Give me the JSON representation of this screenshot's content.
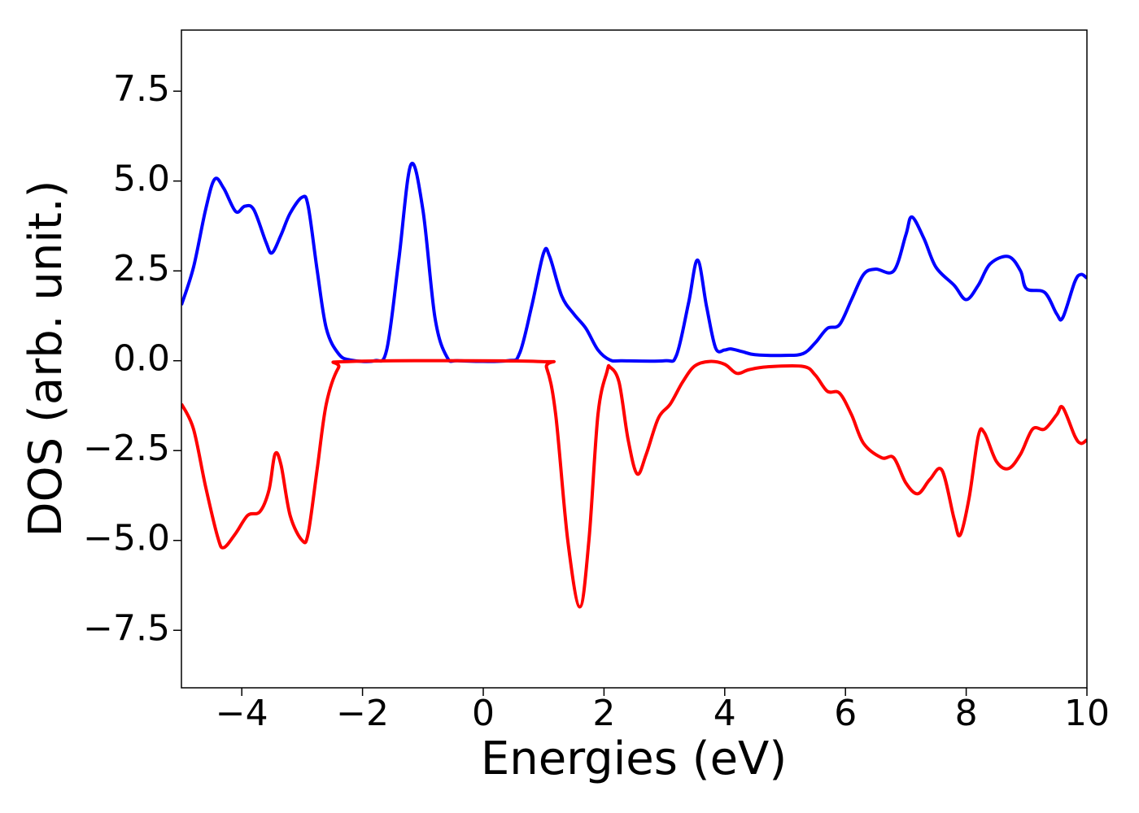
{
  "chart_data": {
    "type": "line",
    "xlabel": "Energies (eV)",
    "ylabel": "DOS (arb. unit.)",
    "xlim": [
      -5,
      10
    ],
    "ylim": [
      -9.1,
      9.2
    ],
    "xticks": [
      {
        "value": -4,
        "label": "−4"
      },
      {
        "value": -2,
        "label": "−2"
      },
      0,
      2,
      4,
      6,
      8,
      10
    ],
    "yticks": [
      {
        "value": -7.5,
        "label": "−7.5"
      },
      {
        "value": -5,
        "label": "−5.0"
      },
      {
        "value": -2.5,
        "label": "−2.5"
      },
      {
        "value": 0,
        "label": "0.0"
      },
      2.5,
      {
        "value": 5,
        "label": "5.0"
      },
      7.5
    ],
    "series": [
      {
        "color": "#0000ff",
        "x": [
          -5,
          -4.8,
          -4.6,
          -4.45,
          -4.3,
          -4.1,
          -3.95,
          -3.8,
          -3.6,
          -3.5,
          -3.35,
          -3.2,
          -3.0,
          -2.9,
          -2.75,
          -2.6,
          -2.4,
          -2.2,
          -1.8,
          -1.6,
          -1.4,
          -1.2,
          -1.0,
          -0.8,
          -0.6,
          -0.4,
          0.4,
          0.6,
          0.8,
          1.0,
          1.1,
          1.3,
          1.5,
          1.7,
          1.9,
          2.1,
          2.3,
          3.0,
          3.2,
          3.4,
          3.55,
          3.7,
          3.85,
          4.0,
          4.1,
          4.3,
          4.5,
          5.0,
          5.3,
          5.5,
          5.7,
          5.9,
          6.1,
          6.3,
          6.5,
          6.8,
          7.0,
          7.1,
          7.3,
          7.5,
          7.8,
          8.0,
          8.2,
          8.4,
          8.7,
          8.9,
          9.0,
          9.3,
          9.5,
          9.6,
          9.8,
          9.9,
          10.0
        ],
        "values": [
          1.55,
          2.6,
          4.2,
          5.05,
          4.8,
          4.15,
          4.3,
          4.2,
          3.3,
          3.0,
          3.5,
          4.1,
          4.55,
          4.3,
          2.5,
          0.9,
          0.2,
          0.02,
          0.0,
          0.3,
          2.8,
          5.45,
          4.2,
          1.2,
          0.1,
          0.0,
          0.0,
          0.2,
          1.5,
          3.0,
          2.9,
          1.8,
          1.3,
          0.9,
          0.3,
          0.02,
          0.0,
          0.0,
          0.15,
          1.6,
          2.8,
          1.5,
          0.35,
          0.3,
          0.33,
          0.25,
          0.17,
          0.15,
          0.2,
          0.5,
          0.9,
          1.0,
          1.7,
          2.4,
          2.55,
          2.5,
          3.5,
          4.0,
          3.4,
          2.6,
          2.1,
          1.7,
          2.1,
          2.7,
          2.9,
          2.5,
          2.0,
          1.9,
          1.3,
          1.2,
          2.2,
          2.4,
          2.3
        ]
      },
      {
        "color": "#ff0000",
        "x": [
          -5,
          -4.8,
          -4.6,
          -4.4,
          -4.3,
          -4.1,
          -3.9,
          -3.7,
          -3.55,
          -3.45,
          -3.35,
          -3.2,
          -3.0,
          -2.9,
          -2.75,
          -2.6,
          -2.4,
          -2.2,
          0.9,
          1.05,
          1.2,
          1.4,
          1.6,
          1.75,
          1.9,
          2.05,
          2.1,
          2.25,
          2.4,
          2.55,
          2.7,
          2.9,
          3.1,
          3.3,
          3.5,
          3.75,
          4.0,
          4.2,
          4.4,
          4.7,
          5.3,
          5.5,
          5.7,
          5.9,
          6.1,
          6.3,
          6.6,
          6.8,
          7.0,
          7.2,
          7.4,
          7.6,
          7.8,
          7.9,
          8.05,
          8.2,
          8.3,
          8.5,
          8.7,
          8.9,
          9.1,
          9.3,
          9.5,
          9.6,
          9.8,
          9.9,
          10.0
        ],
        "values": [
          -1.2,
          -1.9,
          -3.5,
          -4.9,
          -5.2,
          -4.8,
          -4.3,
          -4.2,
          -3.6,
          -2.6,
          -2.9,
          -4.3,
          -5.0,
          -4.8,
          -3.0,
          -1.2,
          -0.2,
          -0.02,
          -0.02,
          -0.2,
          -1.5,
          -5.0,
          -6.85,
          -5.0,
          -1.5,
          -0.3,
          -0.18,
          -0.6,
          -2.2,
          -3.15,
          -2.6,
          -1.6,
          -1.2,
          -0.6,
          -0.15,
          -0.02,
          -0.1,
          -0.35,
          -0.25,
          -0.17,
          -0.16,
          -0.4,
          -0.85,
          -0.9,
          -1.5,
          -2.3,
          -2.7,
          -2.7,
          -3.4,
          -3.7,
          -3.3,
          -3.05,
          -4.4,
          -4.85,
          -3.8,
          -2.1,
          -2.0,
          -2.8,
          -3.0,
          -2.6,
          -1.9,
          -1.9,
          -1.5,
          -1.3,
          -2.1,
          -2.3,
          -2.2
        ]
      }
    ]
  }
}
